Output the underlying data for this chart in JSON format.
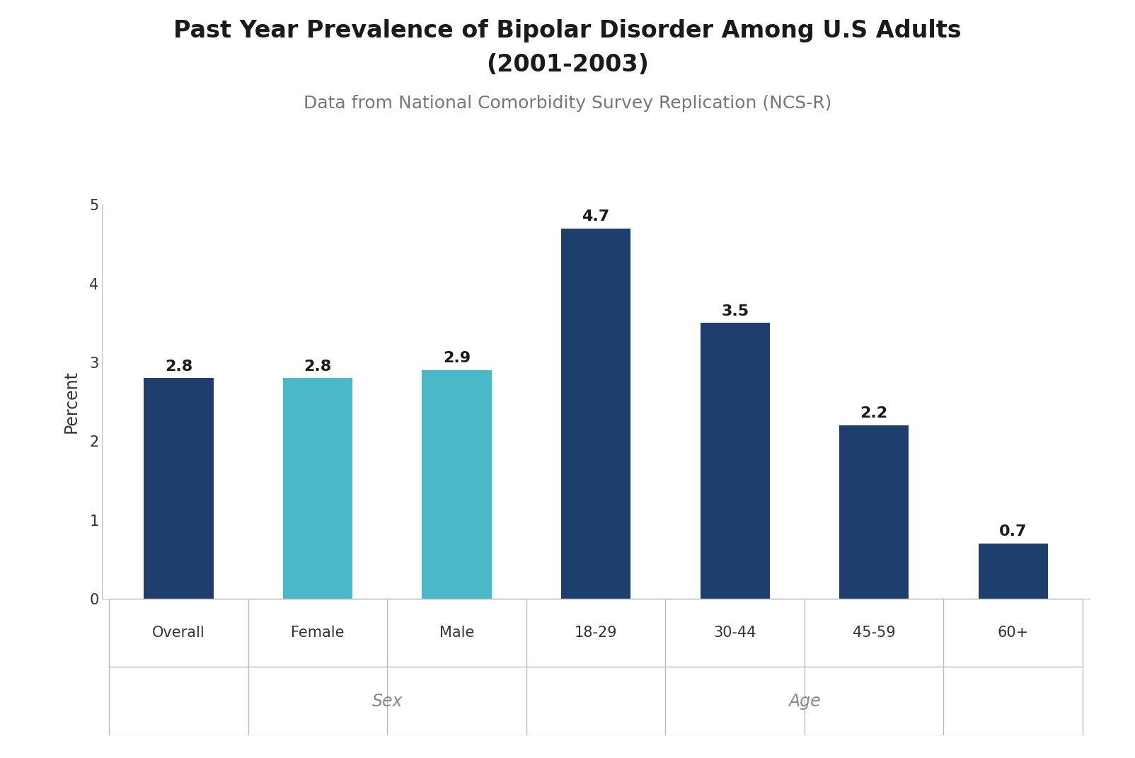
{
  "title_line1": "Past Year Prevalence of Bipolar Disorder Among U.S Adults",
  "title_line2": "(2001-2003)",
  "subtitle": "Data from National Comorbidity Survey Replication (NCS-R)",
  "categories": [
    "Overall",
    "Female",
    "Male",
    "18-29",
    "30-44",
    "45-59",
    "60+"
  ],
  "values": [
    2.8,
    2.8,
    2.9,
    4.7,
    3.5,
    2.2,
    0.7
  ],
  "bar_colors": [
    "#1e3f6e",
    "#4ab8c8",
    "#4ab8c8",
    "#1e3f6e",
    "#1e3f6e",
    "#1e3f6e",
    "#1e3f6e"
  ],
  "ylabel": "Percent",
  "ylim": [
    0,
    5
  ],
  "yticks": [
    0,
    1,
    2,
    3,
    4,
    5
  ],
  "background_color": "#ffffff",
  "group_labels": [
    "Sex",
    "Age"
  ],
  "title_fontsize": 24,
  "subtitle_fontsize": 18,
  "ylabel_fontsize": 17,
  "tick_fontsize": 15,
  "bar_label_fontsize": 16,
  "group_label_fontsize": 17,
  "title_color": "#1a1a1a",
  "subtitle_color": "#777777",
  "tick_color": "#333333",
  "bar_label_color": "#1a1a1a",
  "group_label_color": "#888888",
  "line_color": "#bbbbcc"
}
